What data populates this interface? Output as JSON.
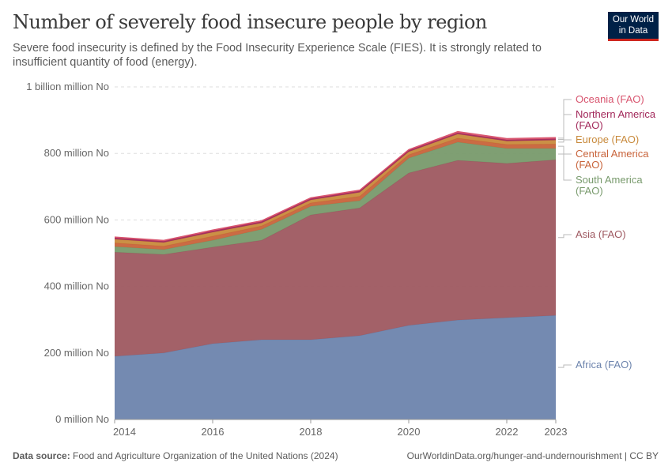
{
  "title": "Number of severely food insecure people by region",
  "subtitle": "Severe food insecurity is defined by the Food Insecurity Experience Scale (FIES). It is strongly related to insufficient quantity of food (energy).",
  "logo": {
    "line1": "Our World",
    "line2": "in Data"
  },
  "footer": {
    "source_label": "Data source:",
    "source": "Food and Agriculture Organization of the United Nations (2024)",
    "right": "OurWorldinData.org/hunger-and-undernourishment | CC BY"
  },
  "chart_data": {
    "type": "area",
    "stacked": true,
    "x": [
      2014,
      2015,
      2016,
      2017,
      2018,
      2019,
      2020,
      2021,
      2022,
      2023
    ],
    "x_ticks": [
      "2014",
      "2016",
      "2018",
      "2020",
      "2022",
      "2023"
    ],
    "y_ticks": [
      "0 million No",
      "200 million No",
      "400 million No",
      "600 million No",
      "800 million No",
      "1 billion million No"
    ],
    "ylim": [
      0,
      1000
    ],
    "y_unit": "million",
    "grid": "horizontal dashed",
    "legend": "right, inline labels",
    "series": [
      {
        "name": "Africa (FAO)",
        "color": "#6d84ad",
        "values": [
          190,
          200,
          228,
          240,
          240,
          252,
          283,
          299,
          306,
          313
        ]
      },
      {
        "name": "Asia (FAO)",
        "color": "#9e5860",
        "values": [
          313,
          296,
          290,
          299,
          375,
          384,
          458,
          480,
          464,
          468
        ]
      },
      {
        "name": "South America (FAO)",
        "color": "#789a6c",
        "values": [
          17,
          15,
          21,
          33,
          26,
          22,
          45,
          55,
          45,
          34
        ]
      },
      {
        "name": "Central America (FAO)",
        "color": "#c8633a",
        "values": [
          11,
          10,
          12,
          10,
          10,
          13,
          10,
          12,
          12,
          13
        ]
      },
      {
        "name": "Europe (FAO)",
        "color": "#c88a3c",
        "values": [
          11,
          11,
          12,
          9,
          9,
          12,
          9,
          12,
          10,
          12
        ]
      },
      {
        "name": "Northern America (FAO)",
        "color": "#a2285a",
        "values": [
          4,
          4,
          4,
          4,
          4,
          4,
          4,
          4,
          4,
          4
        ]
      },
      {
        "name": "Oceania (FAO)",
        "color": "#d8546e",
        "values": [
          3,
          3,
          3,
          3,
          3,
          3,
          3,
          4,
          4,
          4
        ]
      }
    ]
  }
}
